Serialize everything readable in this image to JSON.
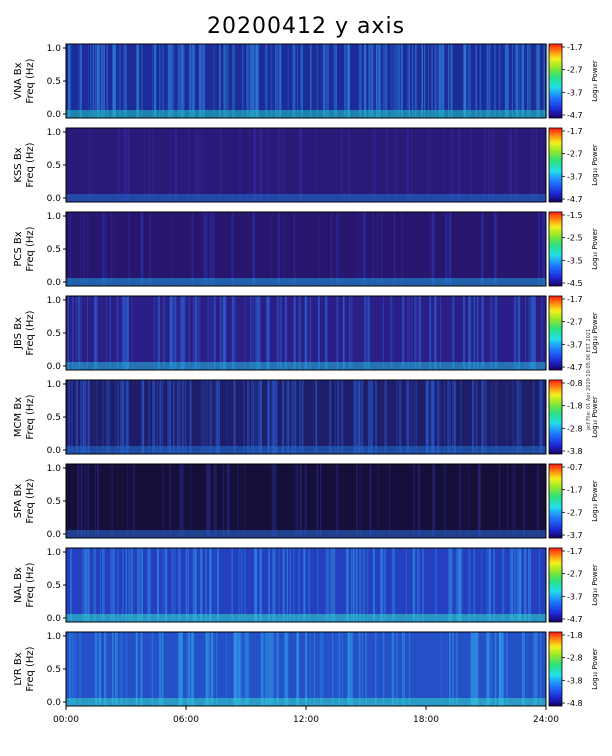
{
  "title": "20200412 y axis",
  "credit": "pcf File: 01 Apr 2020 10:05:06 EST 2021",
  "chart_data": {
    "type": "heatmap",
    "x_axis": {
      "range": [
        "00:00",
        "24:00"
      ],
      "ticks": [
        "00:00",
        "06:00",
        "12:00",
        "18:00",
        "24:00"
      ]
    },
    "y_axis": {
      "range": [
        0.0,
        1.0
      ],
      "ticks": [
        "0.0",
        "0.5",
        "1.0"
      ]
    },
    "colorbar_label": "Log₁₀ Power",
    "panels": [
      {
        "station": "VNA Bx",
        "ylabel": "Freq (Hz)",
        "cbar_ticks": [
          "-1.7",
          "-2.7",
          "-3.7",
          "-4.7"
        ]
      },
      {
        "station": "KSS Bx",
        "ylabel": "Freq (Hz)",
        "cbar_ticks": [
          "-1.7",
          "-2.7",
          "-3.7",
          "-4.7"
        ]
      },
      {
        "station": "PCS Bx",
        "ylabel": "Freq (Hz)",
        "cbar_ticks": [
          "-1.5",
          "-2.5",
          "-3.5",
          "-4.5"
        ]
      },
      {
        "station": "JBS Bx",
        "ylabel": "Freq (Hz)",
        "cbar_ticks": [
          "-1.7",
          "-2.7",
          "-3.7",
          "-4.7"
        ]
      },
      {
        "station": "MCM Bx",
        "ylabel": "Freq (Hz)",
        "cbar_ticks": [
          "-0.8",
          "-1.8",
          "-2.8",
          "-3.8"
        ]
      },
      {
        "station": "SPA Bx",
        "ylabel": "Freq (Hz)",
        "cbar_ticks": [
          "-0.7",
          "-1.7",
          "-2.7",
          "-3.7"
        ]
      },
      {
        "station": "NAL Bx",
        "ylabel": "Freq (Hz)",
        "cbar_ticks": [
          "-1.7",
          "-2.7",
          "-3.7",
          "-4.7"
        ]
      },
      {
        "station": "LYR Bx",
        "ylabel": "Freq (Hz)",
        "cbar_ticks": [
          "-1.8",
          "-2.8",
          "-3.8",
          "-4.8"
        ]
      }
    ]
  }
}
